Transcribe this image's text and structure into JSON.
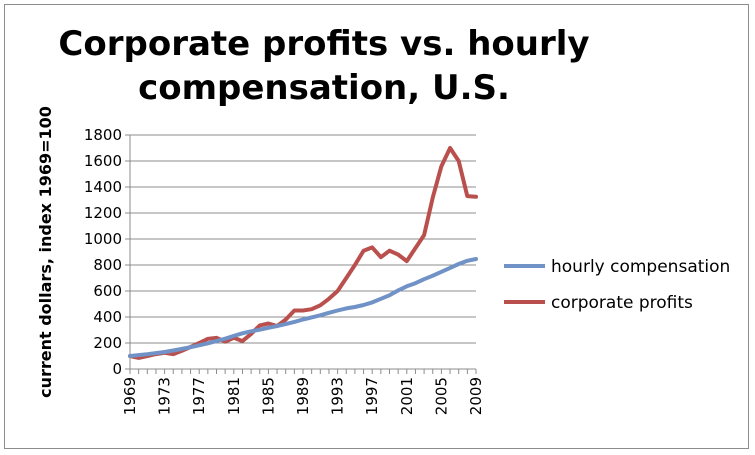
{
  "chart_data": {
    "type": "line",
    "title_line1": "Corporate profits vs. hourly",
    "title_line2": "compensation, U.S.",
    "ylabel": "current dollars, index 1969=100",
    "xlabel": "",
    "ylim": [
      0,
      1800
    ],
    "yticks": [
      0,
      200,
      400,
      600,
      800,
      1000,
      1200,
      1400,
      1600,
      1800
    ],
    "xticks": [
      "1969",
      "1973",
      "1977",
      "1981",
      "1985",
      "1989",
      "1993",
      "1997",
      "2001",
      "2005",
      "2009"
    ],
    "grid": true,
    "legend": "right",
    "x": [
      1969,
      1970,
      1971,
      1972,
      1973,
      1974,
      1975,
      1976,
      1977,
      1978,
      1979,
      1980,
      1981,
      1982,
      1983,
      1984,
      1985,
      1986,
      1987,
      1988,
      1989,
      1990,
      1991,
      1992,
      1993,
      1994,
      1995,
      1996,
      1997,
      1998,
      1999,
      2000,
      2001,
      2002,
      2003,
      2004,
      2005,
      2006,
      2007,
      2008,
      2009
    ],
    "series": [
      {
        "name": "hourly compensation",
        "color": "#7092c6",
        "values": [
          100,
          107,
          114,
          122,
          131,
          142,
          155,
          168,
          182,
          198,
          215,
          233,
          255,
          275,
          290,
          302,
          317,
          330,
          345,
          362,
          381,
          397,
          413,
          432,
          450,
          466,
          477,
          492,
          512,
          540,
          567,
          605,
          636,
          660,
          691,
          718,
          748,
          778,
          808,
          832,
          846
        ]
      },
      {
        "name": "corporate profits",
        "color": "#b9504e",
        "values": [
          100,
          85,
          100,
          115,
          125,
          115,
          140,
          170,
          200,
          232,
          240,
          210,
          240,
          215,
          270,
          335,
          350,
          330,
          380,
          450,
          450,
          460,
          490,
          540,
          600,
          700,
          800,
          910,
          935,
          860,
          910,
          880,
          830,
          930,
          1030,
          1320,
          1560,
          1700,
          1600,
          1330,
          1325
        ]
      }
    ]
  }
}
